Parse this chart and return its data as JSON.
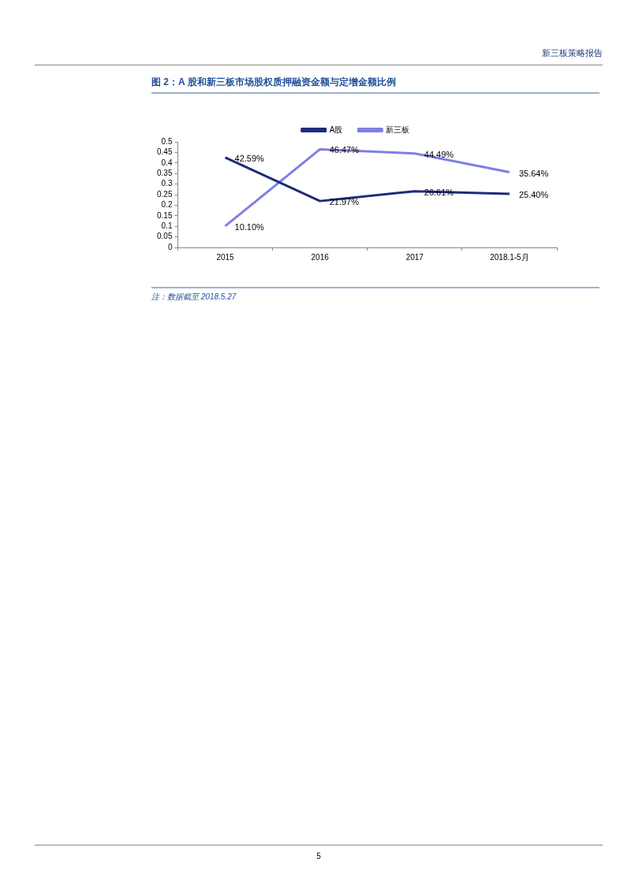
{
  "chart_data": {
    "type": "line",
    "title": "图 2：A 股和新三板市场股权质押融资金额与定增金额比例",
    "categories": [
      "2015",
      "2016",
      "2017",
      "2018.1-5月"
    ],
    "series": [
      {
        "name": "A股",
        "color": "#1f2a7c",
        "values": [
          0.4259,
          0.2197,
          0.2661,
          0.254
        ],
        "value_labels": [
          "42.59%",
          "21.97%",
          "26.61%",
          "25.40%"
        ]
      },
      {
        "name": "新三板",
        "color": "#7f7fe6",
        "values": [
          0.101,
          0.4647,
          0.4449,
          0.3564
        ],
        "value_labels": [
          "10.10%",
          "46.47%",
          "44.49%",
          "35.64%"
        ]
      }
    ],
    "ylim": [
      0,
      0.5
    ],
    "yticks": [
      0,
      0.05,
      0.1,
      0.15,
      0.2,
      0.25,
      0.3,
      0.35,
      0.4,
      0.45,
      0.5
    ],
    "grid": false,
    "legend": "top",
    "marker": "none",
    "line_style": "solid",
    "annotations": [
      "新三板策略报告",
      "注：数据截至 2018.5.27",
      "5"
    ]
  }
}
